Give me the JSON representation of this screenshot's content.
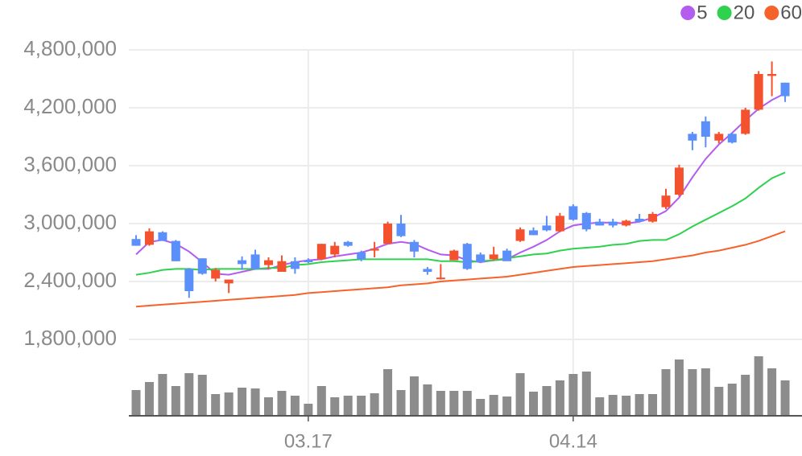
{
  "chart_data": {
    "type": "candlestick",
    "categories": [
      null,
      null,
      null,
      null,
      null,
      null,
      null,
      null,
      null,
      null,
      null,
      null,
      null,
      "03.17",
      null,
      null,
      null,
      null,
      null,
      null,
      null,
      null,
      null,
      null,
      null,
      null,
      null,
      null,
      null,
      null,
      null,
      null,
      null,
      "04.14",
      null,
      null,
      null,
      null,
      null,
      null,
      null,
      null,
      null,
      null,
      null,
      null,
      null,
      null,
      null,
      null
    ],
    "open": [
      2840000,
      2780000,
      2910000,
      2820000,
      2530000,
      2640000,
      2430000,
      2380000,
      2620000,
      2680000,
      2570000,
      2500000,
      2610000,
      2620000,
      2630000,
      2680000,
      2810000,
      2700000,
      2720000,
      2790000,
      3000000,
      2810000,
      2530000,
      2430000,
      2620000,
      2790000,
      2680000,
      2630000,
      2720000,
      2820000,
      2930000,
      2980000,
      2920000,
      3180000,
      3110000,
      3020000,
      3020000,
      2980000,
      3050000,
      3020000,
      3170000,
      3300000,
      3930000,
      4060000,
      3860000,
      3930000,
      3930000,
      4180000,
      4530000,
      4460000
    ],
    "high": [
      2880000,
      2950000,
      2920000,
      2830000,
      2540000,
      2640000,
      2540000,
      2420000,
      2660000,
      2730000,
      2650000,
      2670000,
      2650000,
      2640000,
      2790000,
      2810000,
      2820000,
      2720000,
      2810000,
      3020000,
      3090000,
      2830000,
      2550000,
      2580000,
      2730000,
      2800000,
      2700000,
      2760000,
      2740000,
      2960000,
      2960000,
      3080000,
      3110000,
      3200000,
      3120000,
      3050000,
      3050000,
      3040000,
      3100000,
      3120000,
      3360000,
      3610000,
      3950000,
      4110000,
      3950000,
      3940000,
      4200000,
      4580000,
      4680000,
      4460000
    ],
    "low": [
      2770000,
      2770000,
      2820000,
      2610000,
      2230000,
      2470000,
      2400000,
      2280000,
      2520000,
      2520000,
      2530000,
      2500000,
      2480000,
      2590000,
      2620000,
      2650000,
      2760000,
      2610000,
      2650000,
      2820000,
      2860000,
      2650000,
      2470000,
      2420000,
      2620000,
      2520000,
      2590000,
      2620000,
      2620000,
      2810000,
      2880000,
      2920000,
      2910000,
      3030000,
      2920000,
      2980000,
      2960000,
      2970000,
      3010000,
      3010000,
      3150000,
      3280000,
      3760000,
      3790000,
      3830000,
      3830000,
      3920000,
      4170000,
      4320000,
      4260000
    ],
    "close": [
      2770000,
      2920000,
      2820000,
      2610000,
      2300000,
      2480000,
      2520000,
      2420000,
      2580000,
      2530000,
      2620000,
      2610000,
      2530000,
      2600000,
      2790000,
      2770000,
      2770000,
      2630000,
      2740000,
      3000000,
      2870000,
      2710000,
      2500000,
      2440000,
      2720000,
      2530000,
      2600000,
      2680000,
      2610000,
      2940000,
      2880000,
      2930000,
      3080000,
      3040000,
      2940000,
      2980000,
      2980000,
      3030000,
      3020000,
      3100000,
      3290000,
      3580000,
      3860000,
      3900000,
      3930000,
      3840000,
      4180000,
      4550000,
      4550000,
      4320000
    ],
    "up_color": "#f4522e",
    "down_color": "#5b8ff9",
    "series": [
      {
        "name": "5",
        "color": "#b35cf0",
        "values": [
          2680000,
          2810000,
          2830000,
          2790000,
          2710000,
          2600000,
          2480000,
          2470000,
          2500000,
          2530000,
          2530000,
          2570000,
          2600000,
          2620000,
          2630000,
          2660000,
          2680000,
          2700000,
          2740000,
          2790000,
          2810000,
          2790000,
          2730000,
          2680000,
          2670000,
          2620000,
          2600000,
          2620000,
          2630000,
          2700000,
          2760000,
          2830000,
          2920000,
          2980000,
          3000000,
          3010000,
          3010000,
          3000000,
          3020000,
          3060000,
          3130000,
          3270000,
          3480000,
          3670000,
          3820000,
          3940000,
          4070000,
          4190000,
          4280000,
          4350000
        ]
      },
      {
        "name": "20",
        "color": "#2fd14f",
        "values": [
          2470000,
          2490000,
          2520000,
          2530000,
          2530000,
          2520000,
          2530000,
          2530000,
          2530000,
          2530000,
          2540000,
          2540000,
          2570000,
          2580000,
          2600000,
          2610000,
          2620000,
          2630000,
          2630000,
          2630000,
          2630000,
          2630000,
          2630000,
          2610000,
          2610000,
          2600000,
          2610000,
          2620000,
          2640000,
          2660000,
          2680000,
          2690000,
          2720000,
          2740000,
          2750000,
          2760000,
          2780000,
          2790000,
          2820000,
          2830000,
          2830000,
          2890000,
          2970000,
          3040000,
          3110000,
          3180000,
          3260000,
          3370000,
          3470000,
          3530000
        ]
      },
      {
        "name": "60",
        "color": "#f7622a",
        "values": [
          2140000,
          2150000,
          2160000,
          2170000,
          2180000,
          2190000,
          2200000,
          2210000,
          2220000,
          2230000,
          2240000,
          2250000,
          2260000,
          2280000,
          2290000,
          2300000,
          2310000,
          2320000,
          2330000,
          2340000,
          2360000,
          2370000,
          2380000,
          2400000,
          2410000,
          2420000,
          2430000,
          2440000,
          2450000,
          2470000,
          2490000,
          2510000,
          2530000,
          2550000,
          2560000,
          2570000,
          2580000,
          2590000,
          2600000,
          2610000,
          2630000,
          2650000,
          2670000,
          2700000,
          2720000,
          2750000,
          2780000,
          2820000,
          2870000,
          2920000
        ]
      }
    ],
    "volume": {
      "color": "#8c8c8c",
      "ylim": [
        0,
        80
      ],
      "values": [
        32,
        42,
        52,
        37,
        53,
        51,
        27,
        29,
        35,
        34,
        23,
        31,
        25,
        15,
        37,
        23,
        25,
        25,
        28,
        58,
        32,
        49,
        39,
        31,
        31,
        31,
        21,
        26,
        24,
        53,
        30,
        37,
        44,
        52,
        55,
        23,
        26,
        25,
        27,
        27,
        58,
        70,
        58,
        59,
        36,
        40,
        51,
        74,
        59,
        44
      ]
    },
    "ylim": [
      1800000,
      4800000
    ],
    "yticks": [
      {
        "value": 1800000,
        "label": "1,800,000"
      },
      {
        "value": 2400000,
        "label": "2,400,000"
      },
      {
        "value": 3000000,
        "label": "3,000,000"
      },
      {
        "value": 3600000,
        "label": "3,600,000"
      },
      {
        "value": 4200000,
        "label": "4,200,000"
      },
      {
        "value": 4800000,
        "label": "4,800,000"
      }
    ],
    "grid": true,
    "legend": "top-right"
  }
}
